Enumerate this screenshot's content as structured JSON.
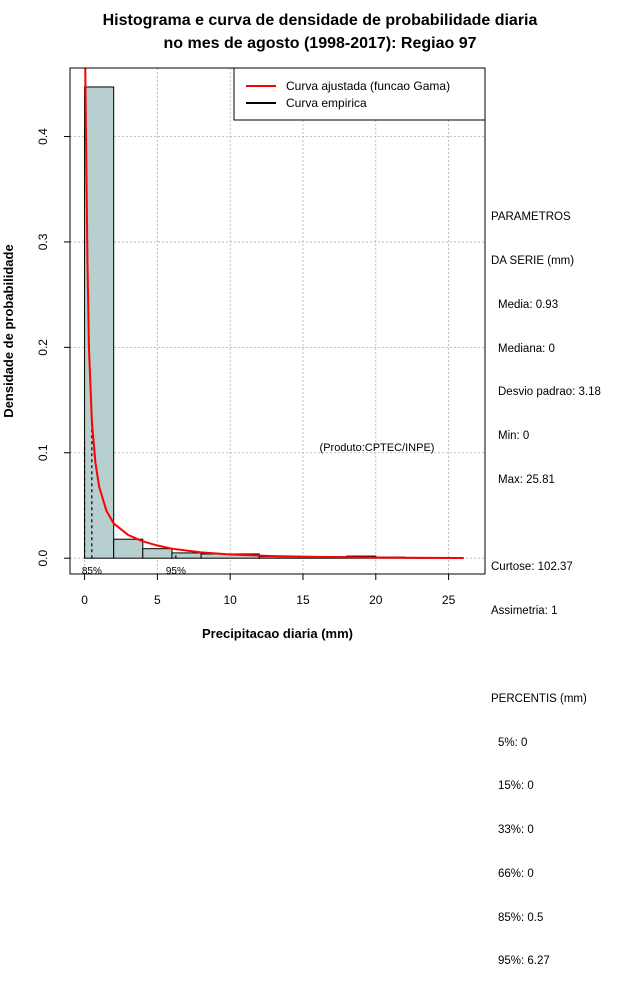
{
  "chart_data": {
    "type": "histogram",
    "title": [
      "Histograma e curva de densidade de probabilidade diaria",
      "no mes de agosto (1998-2017): Regiao 97"
    ],
    "xlabel": "Precipitacao diaria (mm)",
    "ylabel": "Densidade de probabilidade",
    "xlim": [
      -1,
      27.5
    ],
    "ylim": [
      -0.015,
      0.465
    ],
    "x_ticks": [
      0,
      5,
      10,
      15,
      20,
      25
    ],
    "y_ticks": [
      0.0,
      0.1,
      0.2,
      0.3,
      0.4
    ],
    "y_tick_labels": [
      "0.0",
      "0.1",
      "0.2",
      "0.3",
      "0.4"
    ],
    "grid": true,
    "bins": [
      {
        "x0": 0,
        "x1": 2,
        "density": 0.447
      },
      {
        "x0": 2,
        "x1": 4,
        "density": 0.018
      },
      {
        "x0": 4,
        "x1": 6,
        "density": 0.009
      },
      {
        "x0": 6,
        "x1": 8,
        "density": 0.005
      },
      {
        "x0": 8,
        "x1": 12,
        "density": 0.004
      },
      {
        "x0": 12,
        "x1": 18,
        "density": 0.0015
      },
      {
        "x0": 18,
        "x1": 20,
        "density": 0.002
      },
      {
        "x0": 20,
        "x1": 22,
        "density": 0.001
      },
      {
        "x0": 22,
        "x1": 26,
        "density": 0.0004
      }
    ],
    "gamma_curve": {
      "x": [
        0.05,
        0.1,
        0.2,
        0.3,
        0.5,
        0.75,
        1,
        1.5,
        2,
        3,
        4,
        5,
        6,
        8,
        10,
        13,
        16,
        20,
        26
      ],
      "y": [
        0.47,
        0.4,
        0.28,
        0.2,
        0.13,
        0.09,
        0.068,
        0.045,
        0.033,
        0.022,
        0.016,
        0.012,
        0.009,
        0.0055,
        0.0035,
        0.002,
        0.0012,
        0.0006,
        0.0002
      ]
    },
    "percentile_lines": [
      {
        "x": 0,
        "y_top": 0.11,
        "label": ""
      },
      {
        "x": 0.5,
        "y_top": 0.13,
        "label": "85%"
      },
      {
        "x": 6.27,
        "y_top": 0.004,
        "label": "95%"
      }
    ],
    "legend": {
      "position": "top-right",
      "entries": [
        {
          "label": "Curva ajustada (funcao Gama)",
          "color": "#ff0000"
        },
        {
          "label": "Curva empirica",
          "color": "#000000"
        }
      ]
    },
    "annotation": "(Produto:CPTEC/INPE)"
  },
  "colors": {
    "bar_fill": "#b7cfcf",
    "curve": "#ff0000",
    "grid": "#b0b0b0"
  },
  "stats_panel": {
    "header1": "PARAMETROS",
    "header2": "DA SERIE (mm)",
    "media": "Media: 0.93",
    "mediana": "Mediana: 0",
    "desvio": "Desvio padrao: 3.18",
    "min": "Min: 0",
    "max": "Max: 25.81",
    "curtose": "Curtose: 102.37",
    "assimetria": "Assimetria: 1",
    "percentis_header": "PERCENTIS (mm)",
    "p5": "5%: 0",
    "p15": "15%: 0",
    "p33": "33%: 0",
    "p66": "66%: 0",
    "p85": "85%: 0.5",
    "p95": "95%: 6.27"
  }
}
